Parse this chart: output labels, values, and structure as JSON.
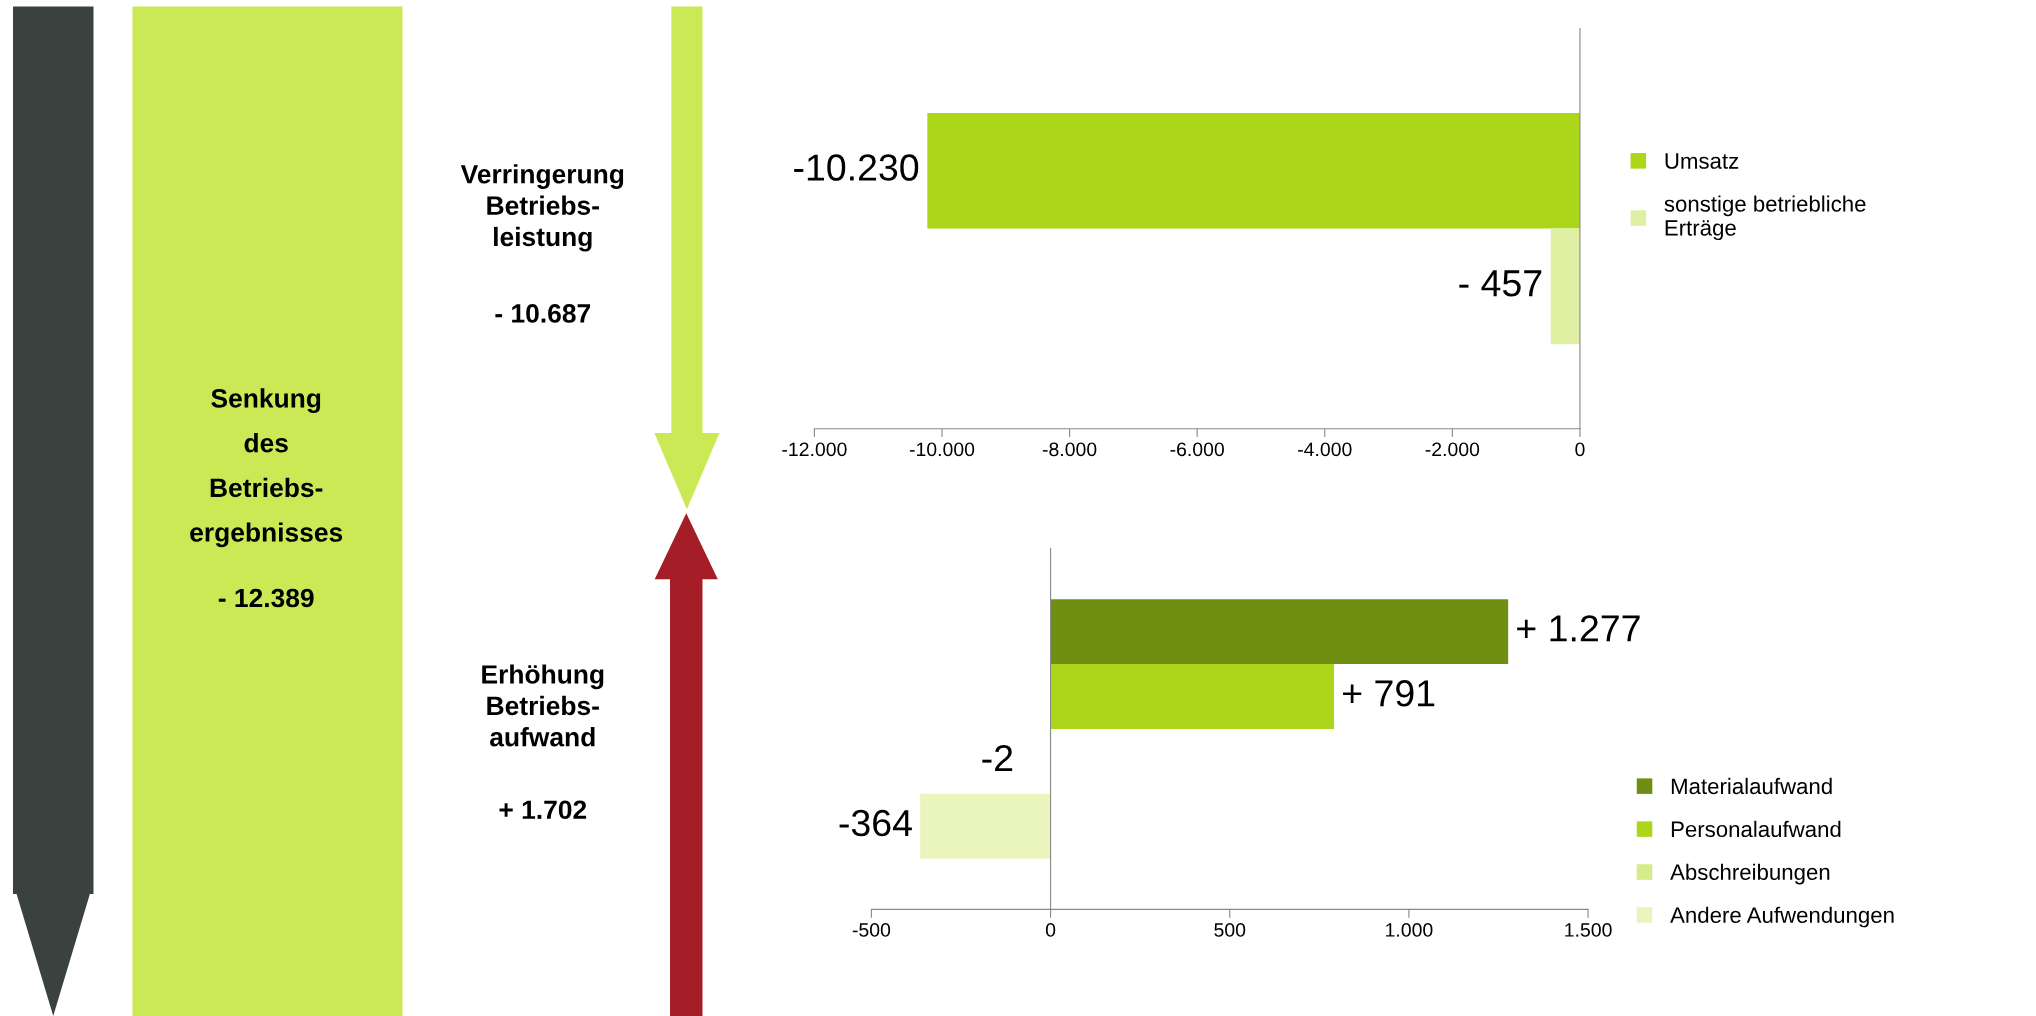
{
  "chart_data": [
    {
      "type": "other",
      "annotations": [
        "Senkung\ndes\nBetriebs-\nergebnisses",
        "- 12.389",
        "Verringerung\nBetriebs-\nleistung",
        "- 10.687",
        "Erhöhung\nBetriebs-\naufwand",
        "+ 1.702"
      ]
    },
    {
      "type": "bar",
      "orientation": "horizontal",
      "categories": [
        null,
        null
      ],
      "tick_labels": "x",
      "legend": "right",
      "series": [
        {
          "name": "Umsatz",
          "color": "#acd61a",
          "values": [
            -10230,
            null
          ],
          "value_labels": [
            "-10.230",
            null
          ]
        },
        {
          "name": "sonstige betriebliche\nErträge",
          "color": "#e0f0a2",
          "values": [
            null,
            -457
          ],
          "value_labels": [
            null,
            "- 457"
          ]
        }
      ],
      "xlim": [
        -12000,
        0
      ],
      "xticks": [
        {
          "value": -12000,
          "label": "-12.000"
        },
        {
          "value": -10000,
          "label": "-10.000"
        },
        {
          "value": -8000,
          "label": "-8.000"
        },
        {
          "value": -6000,
          "label": "-6.000"
        },
        {
          "value": -4000,
          "label": "-4.000"
        },
        {
          "value": -2000,
          "label": "-2.000"
        },
        0
      ]
    },
    {
      "type": "bar",
      "orientation": "horizontal",
      "categories": [
        null,
        null,
        null,
        null
      ],
      "tick_labels": "x",
      "legend": "right",
      "series": [
        {
          "name": "Materialaufwand",
          "color": "#6f8f12",
          "values": [
            1277,
            null,
            null,
            null
          ],
          "value_labels": [
            "+ 1.277",
            null,
            null,
            null
          ]
        },
        {
          "name": "Personalaufwand",
          "color": "#acd61a",
          "values": [
            null,
            791,
            null,
            null
          ],
          "value_labels": [
            null,
            "+ 791",
            null,
            null
          ]
        },
        {
          "name": "Abschreibungen",
          "color": "#d6ec88",
          "values": [
            null,
            null,
            -2,
            null
          ],
          "value_labels": [
            null,
            null,
            "-2",
            null
          ]
        },
        {
          "name": "Andere Aufwendungen",
          "color": "#e9f5bd",
          "values": [
            null,
            null,
            null,
            -364
          ],
          "value_labels": [
            null,
            null,
            null,
            "-364"
          ]
        }
      ],
      "xlim": [
        -500,
        1500
      ],
      "xticks": [
        -500,
        0,
        500,
        {
          "value": 1000,
          "label": "1.000"
        },
        {
          "value": 1500,
          "label": "1.500"
        }
      ]
    }
  ]
}
